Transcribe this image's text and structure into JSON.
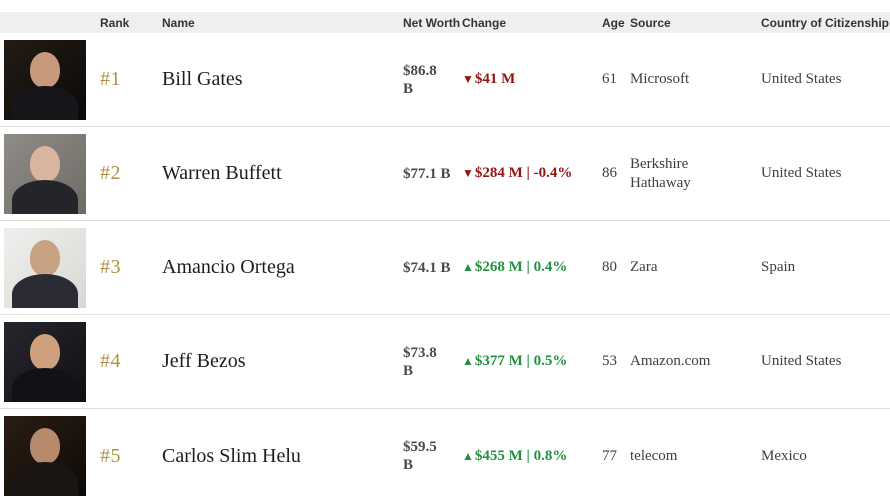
{
  "colors": {
    "positive": "#219140",
    "negative": "#941414",
    "rank_gold": "#ae9147",
    "header_bg": "#efefef",
    "header_text": "#333333",
    "separator": "#e3dfdf"
  },
  "icons": {
    "up_arrow": "▲",
    "down_arrow": "▼"
  },
  "header": {
    "columns": {
      "rank": "Rank",
      "name": "Name",
      "net_worth": "Net Worth",
      "change": "Change",
      "age": "Age",
      "source": "Source",
      "country": "Country of Citizenship"
    }
  },
  "rows": [
    {
      "rank": "#1",
      "name": "Bill Gates",
      "net_worth": "$86.8\nB",
      "change": {
        "direction": "down",
        "text": "$41 M"
      },
      "age": "61",
      "source": "Microsoft",
      "country": "United States",
      "photo": {
        "bg1": "#231b15",
        "bg2": "#0b0a09",
        "skin": "#c89a7c",
        "suit": "#15151a"
      }
    },
    {
      "rank": "#2",
      "name": "Warren Buffett",
      "net_worth": "$77.1 B",
      "change": {
        "direction": "down",
        "text": "$284 M | -0.4%"
      },
      "age": "86",
      "source": "Berkshire Hathaway",
      "country": "United States",
      "photo": {
        "bg1": "#8f8b86",
        "bg2": "#6f6b66",
        "skin": "#d9b49e",
        "suit": "#23252a"
      }
    },
    {
      "rank": "#3",
      "name": "Amancio Ortega",
      "net_worth": "$74.1 B",
      "change": {
        "direction": "up",
        "text": "$268 M | 0.4%"
      },
      "age": "80",
      "source": "Zara",
      "country": "Spain",
      "photo": {
        "bg1": "#efefed",
        "bg2": "#d8d8d4",
        "skin": "#c9a183",
        "suit": "#2b2b33"
      }
    },
    {
      "rank": "#4",
      "name": "Jeff Bezos",
      "net_worth": "$73.8\nB",
      "change": {
        "direction": "up",
        "text": "$377 M | 0.5%"
      },
      "age": "53",
      "source": "Amazon.com",
      "country": "United States",
      "photo": {
        "bg1": "#26262c",
        "bg2": "#101014",
        "skin": "#cfa07e",
        "suit": "#121216"
      }
    },
    {
      "rank": "#5",
      "name": "Carlos Slim Helu",
      "net_worth": "$59.5\nB",
      "change": {
        "direction": "up",
        "text": "$455 M | 0.8%"
      },
      "age": "77",
      "source": "telecom",
      "country": "Mexico",
      "photo": {
        "bg1": "#2a1d14",
        "bg2": "#0e0a07",
        "skin": "#b68a6a",
        "suit": "#1a1512"
      }
    }
  ]
}
